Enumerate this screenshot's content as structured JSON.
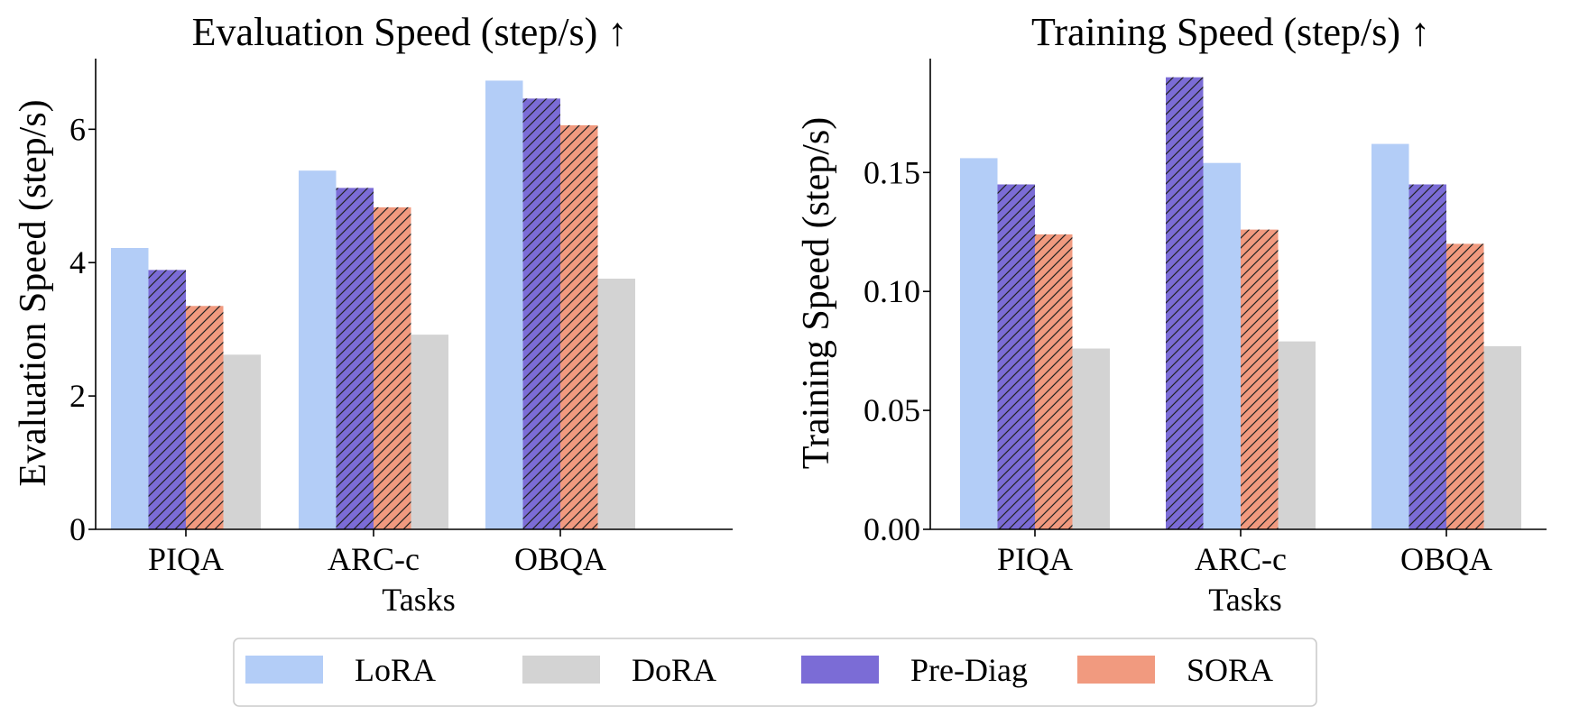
{
  "chart_data": [
    {
      "type": "bar",
      "title": "Evaluation Speed (step/s) ↑",
      "xlabel": "Tasks",
      "ylabel": "Evaluation Speed (step/s)",
      "categories": [
        "PIQA",
        "ARC-c",
        "OBQA"
      ],
      "ylim": [
        0,
        7.1
      ],
      "yticks": [
        0,
        2,
        4,
        6
      ],
      "ytick_labels": [
        "0",
        "2",
        "4",
        "6"
      ],
      "series": [
        {
          "name": "LoRA",
          "values": [
            4.22,
            5.38,
            6.73
          ]
        },
        {
          "name": "Pre-Diag",
          "values": [
            3.89,
            5.12,
            6.46
          ]
        },
        {
          "name": "SORA",
          "values": [
            3.35,
            4.83,
            6.06
          ]
        },
        {
          "name": "DoRA",
          "values": [
            2.62,
            2.92,
            3.76
          ]
        }
      ]
    },
    {
      "type": "bar",
      "title": "Training Speed (step/s) ↑",
      "xlabel": "Tasks",
      "ylabel": "Training Speed (step/s)",
      "categories": [
        "PIQA",
        "ARC-c",
        "OBQA"
      ],
      "ylim": [
        0,
        0.199
      ],
      "yticks": [
        0,
        0.05,
        0.1,
        0.15
      ],
      "ytick_labels": [
        "0.00",
        "0.05",
        "0.10",
        "0.15"
      ],
      "bar_order": [
        [
          "LoRA",
          "Pre-Diag",
          "SORA",
          "DoRA"
        ],
        [
          "Pre-Diag",
          "LoRA",
          "SORA",
          "DoRA"
        ],
        [
          "LoRA",
          "Pre-Diag",
          "SORA",
          "DoRA"
        ]
      ],
      "series": [
        {
          "name": "LoRA",
          "values": [
            0.156,
            0.154,
            0.162
          ]
        },
        {
          "name": "Pre-Diag",
          "values": [
            0.145,
            0.19,
            0.145
          ]
        },
        {
          "name": "SORA",
          "values": [
            0.124,
            0.126,
            0.12
          ]
        },
        {
          "name": "DoRA",
          "values": [
            0.076,
            0.079,
            0.077
          ]
        }
      ]
    }
  ],
  "legend": {
    "position": "bottom-center",
    "items": [
      {
        "name": "LoRA",
        "color": "#b3cdf7",
        "hatch": false
      },
      {
        "name": "DoRA",
        "color": "#d3d3d3",
        "hatch": false
      },
      {
        "name": "Pre-Diag",
        "color": "#7b6cd6",
        "hatch": true
      },
      {
        "name": "SORA",
        "color": "#f19a7f",
        "hatch": true
      }
    ]
  }
}
